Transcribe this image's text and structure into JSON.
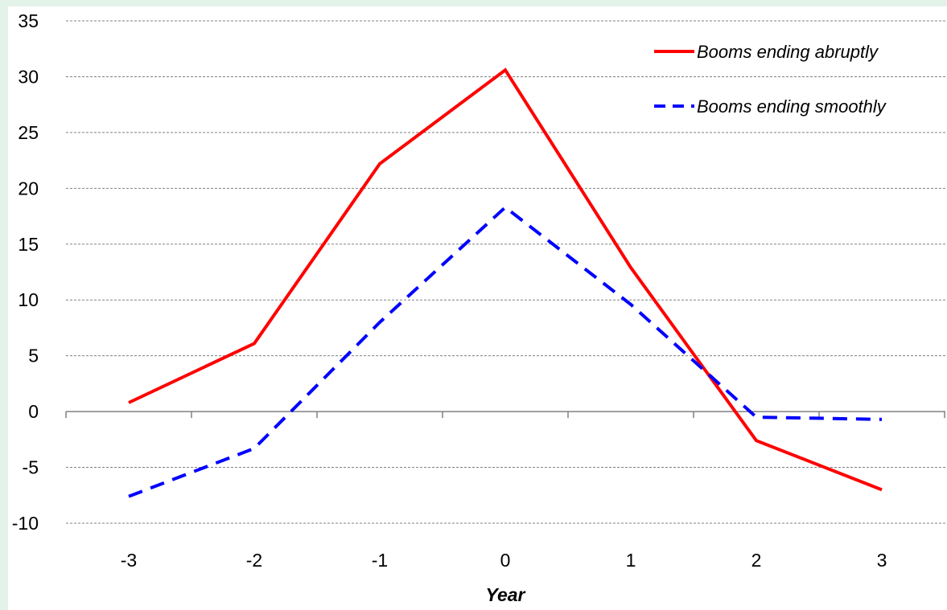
{
  "chart_data": {
    "type": "line",
    "title": "",
    "xlabel": "Year",
    "ylabel": "",
    "x": [
      -3,
      -2,
      -1,
      0,
      1,
      2,
      3
    ],
    "x_tick_labels": [
      "-3",
      "-2",
      "-1",
      "0",
      "1",
      "2",
      "3"
    ],
    "y_tick_labels": [
      "35",
      "30",
      "25",
      "20",
      "15",
      "10",
      "5",
      "0",
      "-5",
      "-10"
    ],
    "ylim": [
      -10,
      35
    ],
    "y_ticks": [
      35,
      30,
      25,
      20,
      15,
      10,
      5,
      0,
      -5,
      -10
    ],
    "grid": "horizontal dashed",
    "legend_position": "top-right",
    "series": [
      {
        "name": "Booms ending abruptly",
        "color": "#ff0000",
        "line_style": "solid",
        "values": [
          0.8,
          6.1,
          22.2,
          30.6,
          12.9,
          -2.6,
          -7.0
        ]
      },
      {
        "name": "Booms ending smoothly",
        "color": "#0000ff",
        "line_style": "dashed",
        "values": [
          -7.6,
          -3.3,
          8.0,
          18.3,
          9.6,
          -0.5,
          -0.7
        ]
      }
    ]
  },
  "colors": {
    "background": "#e3f3ea",
    "panel": "#ffffff",
    "gridline": "#808080",
    "axis": "#808080"
  }
}
